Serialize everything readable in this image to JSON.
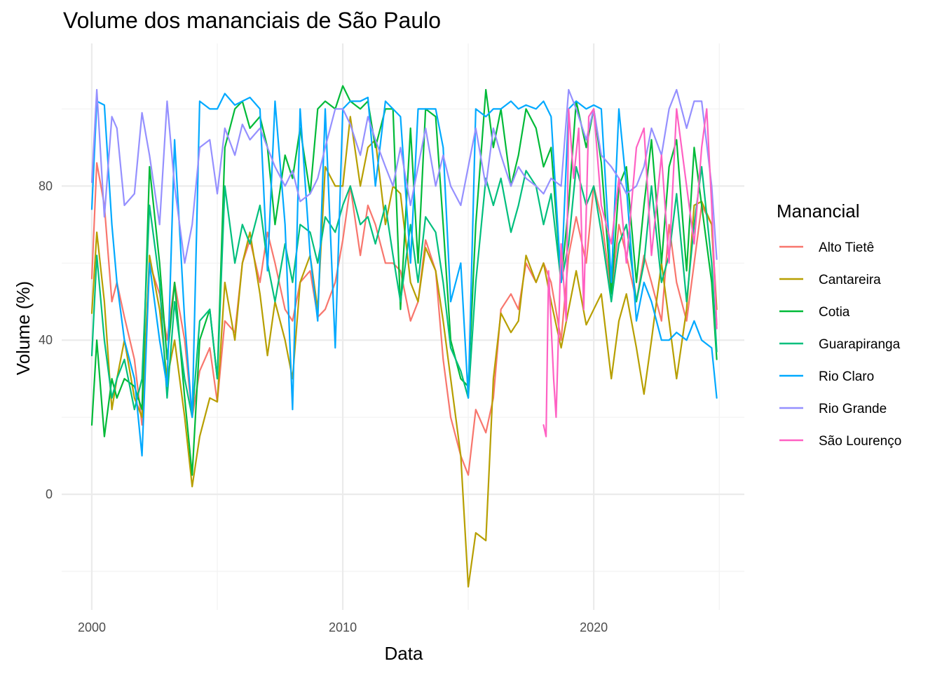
{
  "chart_data": {
    "type": "line",
    "title": "Volume dos mananciais de São Paulo",
    "xlabel": "Data",
    "ylabel": "Volume (%)",
    "x_ticks": [
      2000,
      2010,
      2020
    ],
    "y_ticks": [
      0,
      40,
      80
    ],
    "xlim": [
      1998.8,
      2026.0
    ],
    "ylim": [
      -30,
      117
    ],
    "grid": true,
    "legend": {
      "title": "Manancial",
      "position": "right"
    },
    "series": [
      {
        "name": "Alto Tietê",
        "color": "#F8766D",
        "x": [
          2000.0,
          2000.2,
          2000.5,
          2000.8,
          2001.0,
          2001.3,
          2001.7,
          2002.0,
          2002.3,
          2002.7,
          2003.0,
          2003.3,
          2003.7,
          2004.0,
          2004.3,
          2004.7,
          2005.0,
          2005.3,
          2005.7,
          2006.0,
          2006.3,
          2006.7,
          2007.0,
          2007.3,
          2007.7,
          2008.0,
          2008.3,
          2008.7,
          2009.0,
          2009.3,
          2009.7,
          2010.0,
          2010.3,
          2010.7,
          2011.0,
          2011.3,
          2011.7,
          2012.0,
          2012.3,
          2012.7,
          2013.0,
          2013.3,
          2013.7,
          2014.0,
          2014.3,
          2014.7,
          2015.0,
          2015.3,
          2015.7,
          2016.0,
          2016.3,
          2016.7,
          2017.0,
          2017.3,
          2017.7,
          2018.0,
          2018.3,
          2018.7,
          2019.0,
          2019.3,
          2019.7,
          2020.0,
          2020.3,
          2020.7,
          2021.0,
          2021.3,
          2021.7,
          2022.0,
          2022.3,
          2022.7,
          2023.0,
          2023.3,
          2023.7,
          2024.0,
          2024.3,
          2024.7,
          2024.9
        ],
        "y": [
          56,
          86,
          75,
          50,
          55,
          46,
          35,
          18,
          60,
          52,
          40,
          55,
          40,
          20,
          32,
          38,
          24,
          45,
          42,
          60,
          66,
          55,
          68,
          60,
          48,
          45,
          55,
          58,
          46,
          48,
          55,
          66,
          80,
          62,
          75,
          70,
          60,
          60,
          58,
          45,
          50,
          66,
          58,
          35,
          20,
          10,
          5,
          22,
          16,
          25,
          48,
          52,
          48,
          60,
          55,
          60,
          55,
          40,
          62,
          72,
          60,
          80,
          72,
          52,
          70,
          62,
          50,
          62,
          55,
          45,
          70,
          55,
          45,
          60,
          75,
          70,
          44
        ]
      },
      {
        "name": "Cantareira",
        "color": "#B79F00",
        "x": [
          2000.0,
          2000.2,
          2000.5,
          2000.8,
          2001.0,
          2001.3,
          2001.7,
          2002.0,
          2002.3,
          2002.7,
          2003.0,
          2003.3,
          2003.7,
          2004.0,
          2004.3,
          2004.7,
          2005.0,
          2005.3,
          2005.7,
          2006.0,
          2006.3,
          2006.7,
          2007.0,
          2007.3,
          2007.7,
          2008.0,
          2008.3,
          2008.7,
          2009.0,
          2009.3,
          2009.7,
          2010.0,
          2010.3,
          2010.7,
          2011.0,
          2011.3,
          2011.7,
          2012.0,
          2012.3,
          2012.7,
          2013.0,
          2013.3,
          2013.7,
          2014.0,
          2014.3,
          2014.7,
          2015.0,
          2015.3,
          2015.7,
          2016.0,
          2016.3,
          2016.7,
          2017.0,
          2017.3,
          2017.7,
          2018.0,
          2018.3,
          2018.7,
          2019.0,
          2019.3,
          2019.7,
          2020.0,
          2020.3,
          2020.7,
          2021.0,
          2021.3,
          2021.7,
          2022.0,
          2022.3,
          2022.7,
          2023.0,
          2023.3,
          2023.7,
          2024.0,
          2024.3,
          2024.7,
          2024.9
        ],
        "y": [
          47,
          68,
          50,
          22,
          30,
          40,
          25,
          20,
          62,
          48,
          30,
          40,
          20,
          2,
          15,
          25,
          24,
          55,
          40,
          60,
          68,
          52,
          36,
          50,
          40,
          30,
          55,
          62,
          48,
          85,
          80,
          80,
          98,
          80,
          90,
          92,
          70,
          80,
          78,
          55,
          50,
          64,
          58,
          45,
          30,
          10,
          -24,
          -10,
          -12,
          30,
          47,
          42,
          45,
          62,
          55,
          60,
          50,
          38,
          48,
          58,
          44,
          48,
          52,
          30,
          45,
          52,
          38,
          26,
          40,
          60,
          45,
          30,
          48,
          75,
          76,
          70,
          48
        ]
      },
      {
        "name": "Cotia",
        "color": "#00BA38",
        "x": [
          2000.0,
          2000.2,
          2000.5,
          2000.8,
          2001.0,
          2001.3,
          2001.7,
          2002.0,
          2002.3,
          2002.7,
          2003.0,
          2003.3,
          2003.7,
          2004.0,
          2004.3,
          2004.7,
          2005.0,
          2005.3,
          2005.7,
          2006.0,
          2006.3,
          2006.7,
          2007.0,
          2007.3,
          2007.7,
          2008.0,
          2008.3,
          2008.7,
          2009.0,
          2009.3,
          2009.7,
          2010.0,
          2010.3,
          2010.7,
          2011.0,
          2011.3,
          2011.7,
          2012.0,
          2012.3,
          2012.7,
          2013.0,
          2013.3,
          2013.7,
          2014.0,
          2014.3,
          2014.7,
          2015.0,
          2015.3,
          2015.7,
          2016.0,
          2016.3,
          2016.7,
          2017.0,
          2017.3,
          2017.7,
          2018.0,
          2018.3,
          2018.7,
          2019.0,
          2019.3,
          2019.7,
          2020.0,
          2020.3,
          2020.7,
          2021.0,
          2021.3,
          2021.7,
          2022.0,
          2022.3,
          2022.7,
          2023.0,
          2023.3,
          2023.7,
          2024.0,
          2024.3,
          2024.7,
          2024.9
        ],
        "y": [
          18,
          40,
          15,
          30,
          25,
          30,
          28,
          22,
          85,
          60,
          35,
          55,
          25,
          5,
          40,
          48,
          30,
          90,
          100,
          102,
          95,
          98,
          90,
          70,
          88,
          82,
          95,
          78,
          100,
          102,
          100,
          106,
          102,
          100,
          102,
          90,
          100,
          100,
          48,
          95,
          60,
          100,
          98,
          70,
          40,
          30,
          28,
          70,
          105,
          90,
          100,
          80,
          88,
          100,
          95,
          85,
          90,
          55,
          75,
          102,
          90,
          100,
          86,
          52,
          80,
          85,
          55,
          75,
          92,
          60,
          85,
          92,
          58,
          90,
          75,
          55,
          35
        ]
      },
      {
        "name": "Guarapiranga",
        "color": "#00BF7D",
        "x": [
          2000.0,
          2000.2,
          2000.5,
          2000.8,
          2001.0,
          2001.3,
          2001.7,
          2002.0,
          2002.3,
          2002.7,
          2003.0,
          2003.3,
          2003.7,
          2004.0,
          2004.3,
          2004.7,
          2005.0,
          2005.3,
          2005.7,
          2006.0,
          2006.3,
          2006.7,
          2007.0,
          2007.3,
          2007.7,
          2008.0,
          2008.3,
          2008.7,
          2009.0,
          2009.3,
          2009.7,
          2010.0,
          2010.3,
          2010.7,
          2011.0,
          2011.3,
          2011.7,
          2012.0,
          2012.3,
          2012.7,
          2013.0,
          2013.3,
          2013.7,
          2014.0,
          2014.3,
          2014.7,
          2015.0,
          2015.3,
          2015.7,
          2016.0,
          2016.3,
          2016.7,
          2017.0,
          2017.3,
          2017.7,
          2018.0,
          2018.3,
          2018.7,
          2019.0,
          2019.3,
          2019.7,
          2020.0,
          2020.3,
          2020.7,
          2021.0,
          2021.3,
          2021.7,
          2022.0,
          2022.3,
          2022.7,
          2023.0,
          2023.3,
          2023.7,
          2024.0,
          2024.3,
          2024.7,
          2024.9
        ],
        "y": [
          36,
          62,
          40,
          25,
          30,
          35,
          22,
          30,
          75,
          55,
          25,
          50,
          30,
          20,
          45,
          48,
          30,
          80,
          60,
          70,
          65,
          75,
          60,
          50,
          65,
          55,
          70,
          68,
          60,
          72,
          68,
          75,
          80,
          70,
          72,
          65,
          75,
          62,
          50,
          70,
          55,
          72,
          68,
          55,
          38,
          32,
          25,
          55,
          82,
          75,
          82,
          68,
          75,
          84,
          80,
          70,
          78,
          55,
          65,
          85,
          75,
          80,
          68,
          50,
          65,
          70,
          50,
          60,
          80,
          55,
          62,
          78,
          50,
          70,
          85,
          60,
          37
        ]
      },
      {
        "name": "Rio Claro",
        "color": "#00A9FF",
        "x": [
          2000.0,
          2000.2,
          2000.5,
          2000.8,
          2001.0,
          2001.3,
          2001.7,
          2002.0,
          2002.3,
          2002.7,
          2003.0,
          2003.3,
          2003.7,
          2004.0,
          2004.3,
          2004.7,
          2005.0,
          2005.3,
          2005.7,
          2006.0,
          2006.3,
          2006.7,
          2007.0,
          2007.3,
          2007.7,
          2008.0,
          2008.3,
          2008.7,
          2009.0,
          2009.3,
          2009.7,
          2010.0,
          2010.3,
          2010.7,
          2011.0,
          2011.3,
          2011.7,
          2012.0,
          2012.3,
          2012.7,
          2013.0,
          2013.3,
          2013.7,
          2014.0,
          2014.3,
          2014.7,
          2015.0,
          2015.3,
          2015.7,
          2016.0,
          2016.3,
          2016.7,
          2017.0,
          2017.3,
          2017.7,
          2018.0,
          2018.3,
          2018.7,
          2019.0,
          2019.3,
          2019.7,
          2020.0,
          2020.3,
          2020.7,
          2021.0,
          2021.3,
          2021.7,
          2022.0,
          2022.3,
          2022.7,
          2023.0,
          2023.3,
          2023.7,
          2024.0,
          2024.3,
          2024.7,
          2024.9
        ],
        "y": [
          74,
          102,
          101,
          70,
          55,
          40,
          30,
          10,
          60,
          40,
          28,
          92,
          45,
          20,
          102,
          100,
          100,
          104,
          101,
          102,
          103,
          100,
          58,
          102,
          70,
          22,
          100,
          62,
          45,
          100,
          38,
          100,
          102,
          102,
          103,
          80,
          102,
          100,
          98,
          60,
          100,
          100,
          100,
          90,
          50,
          60,
          25,
          100,
          98,
          100,
          100,
          102,
          100,
          101,
          100,
          102,
          98,
          55,
          100,
          102,
          100,
          101,
          100,
          55,
          100,
          80,
          45,
          55,
          50,
          40,
          40,
          42,
          40,
          45,
          40,
          38,
          25
        ]
      },
      {
        "name": "Rio Grande",
        "color": "#9590FF",
        "x": [
          2000.0,
          2000.2,
          2000.5,
          2000.8,
          2001.0,
          2001.3,
          2001.7,
          2002.0,
          2002.3,
          2002.7,
          2003.0,
          2003.3,
          2003.7,
          2004.0,
          2004.3,
          2004.7,
          2005.0,
          2005.3,
          2005.7,
          2006.0,
          2006.3,
          2006.7,
          2007.0,
          2007.3,
          2007.7,
          2008.0,
          2008.3,
          2008.7,
          2009.0,
          2009.3,
          2009.7,
          2010.0,
          2010.3,
          2010.7,
          2011.0,
          2011.3,
          2011.7,
          2012.0,
          2012.3,
          2012.7,
          2013.0,
          2013.3,
          2013.7,
          2014.0,
          2014.3,
          2014.7,
          2015.0,
          2015.3,
          2015.7,
          2016.0,
          2016.3,
          2016.7,
          2017.0,
          2017.3,
          2017.7,
          2018.0,
          2018.3,
          2018.7,
          2019.0,
          2019.3,
          2019.7,
          2020.0,
          2020.3,
          2020.7,
          2021.0,
          2021.3,
          2021.7,
          2022.0,
          2022.3,
          2022.7,
          2023.0,
          2023.3,
          2023.7,
          2024.0,
          2024.3,
          2024.7,
          2024.9
        ],
        "y": [
          81,
          105,
          72,
          98,
          95,
          75,
          78,
          99,
          88,
          70,
          102,
          80,
          60,
          70,
          90,
          92,
          78,
          95,
          88,
          96,
          92,
          95,
          90,
          85,
          80,
          84,
          76,
          78,
          82,
          90,
          100,
          100,
          96,
          88,
          98,
          92,
          85,
          80,
          90,
          75,
          85,
          95,
          80,
          88,
          80,
          75,
          85,
          95,
          80,
          95,
          88,
          80,
          85,
          82,
          80,
          78,
          82,
          80,
          105,
          100,
          92,
          100,
          88,
          85,
          82,
          78,
          80,
          85,
          95,
          88,
          100,
          105,
          95,
          102,
          102,
          80,
          61
        ]
      },
      {
        "name": "São Lourenço",
        "color": "#FF61C3",
        "x": [
          2018.0,
          2018.1,
          2018.2,
          2018.4,
          2018.5,
          2018.7,
          2018.9,
          2019.0,
          2019.2,
          2019.4,
          2019.6,
          2019.8,
          2020.0,
          2020.3,
          2020.7,
          2021.0,
          2021.3,
          2021.7,
          2022.0,
          2022.3,
          2022.7,
          2023.0,
          2023.3,
          2023.7,
          2024.0,
          2024.3,
          2024.5,
          2024.7,
          2024.9
        ],
        "y": [
          18,
          15,
          58,
          30,
          20,
          65,
          45,
          100,
          82,
          95,
          48,
          98,
          100,
          75,
          65,
          82,
          60,
          90,
          95,
          62,
          88,
          60,
          100,
          80,
          65,
          90,
          100,
          75,
          43
        ]
      }
    ]
  }
}
